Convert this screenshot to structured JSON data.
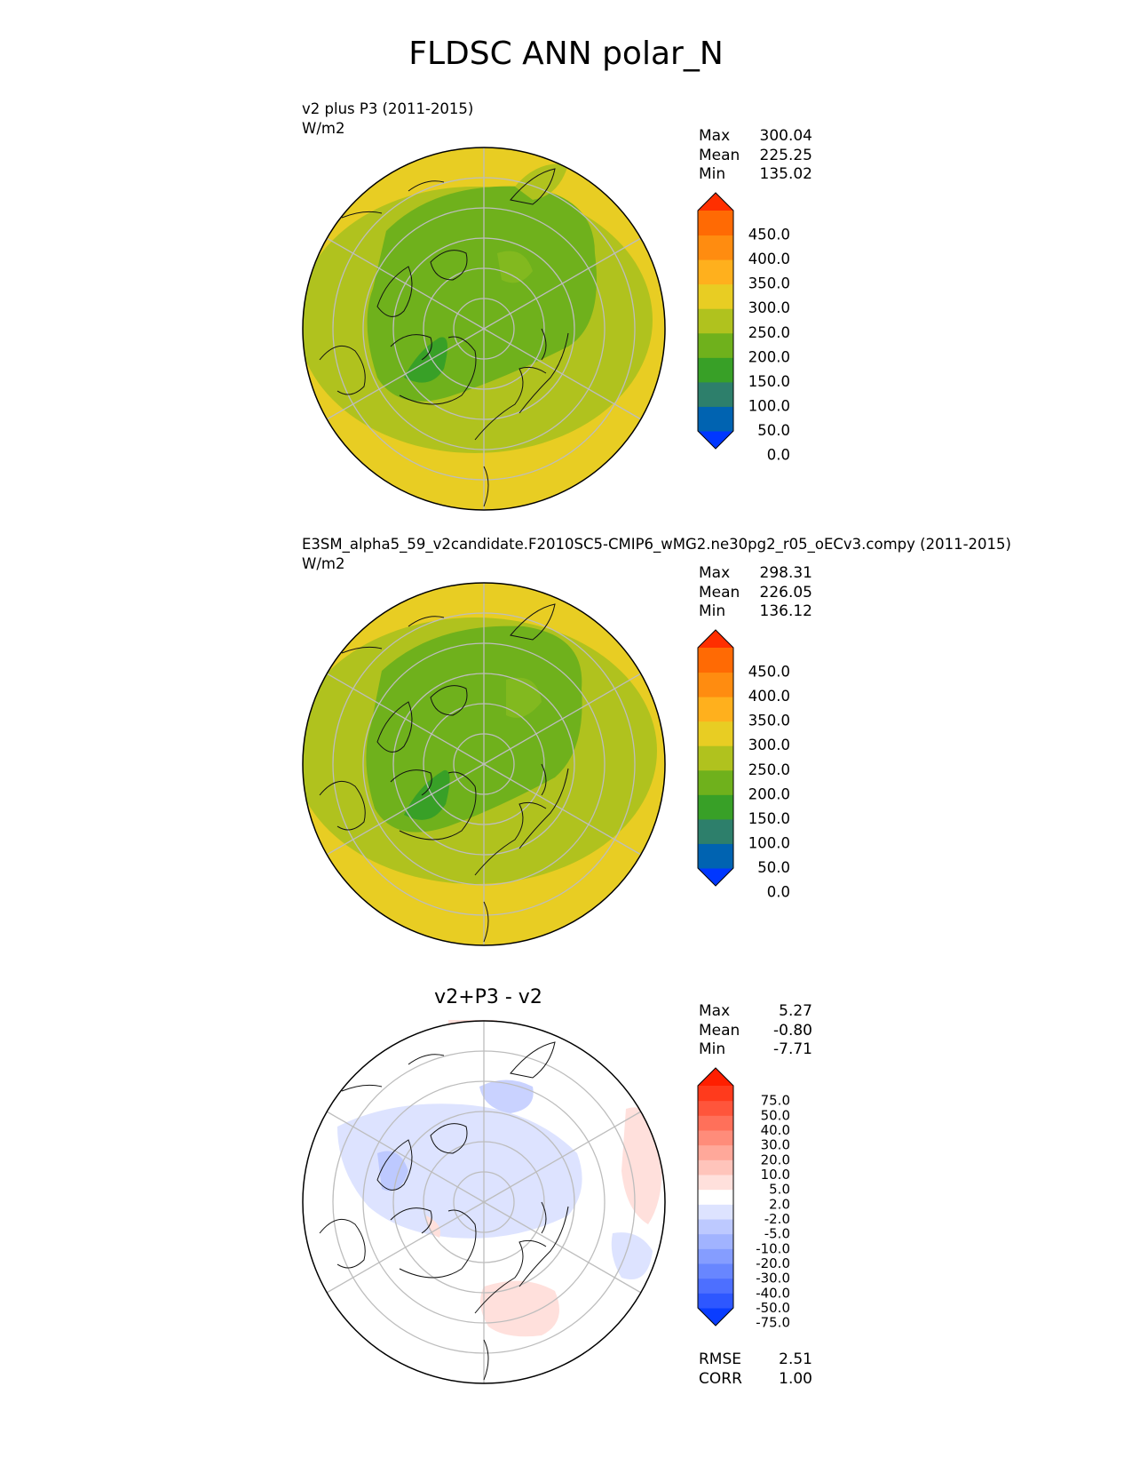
{
  "figure": {
    "suptitle": "FLDSC ANN polar_N"
  },
  "panels": [
    {
      "id": "test",
      "title": "v2 plus P3 (2011-2015)",
      "units": "W/m2",
      "stats": {
        "Max": "300.04",
        "Mean": "225.25",
        "Min": "135.02"
      },
      "colorbar": {
        "labels": [
          "450.0",
          "400.0",
          "350.0",
          "300.0",
          "250.0",
          "200.0",
          "150.0",
          "100.0",
          "50.0",
          "0.0"
        ],
        "colors": [
          "#0037ff",
          "#0063b1",
          "#2d7f6b",
          "#38a027",
          "#6fb11c",
          "#b0c21e",
          "#e8cd23",
          "#ffb01d",
          "#ff8c10",
          "#ff6a04",
          "#ff2f00"
        ]
      }
    },
    {
      "id": "ref",
      "title": "E3SM_alpha5_59_v2candidate.F2010SC5-CMIP6_wMG2.ne30pg2_r05_oECv3.compy (2011-2015)",
      "units": "W/m2",
      "stats": {
        "Max": "298.31",
        "Mean": "226.05",
        "Min": "136.12"
      },
      "colorbar": {
        "labels": [
          "450.0",
          "400.0",
          "350.0",
          "300.0",
          "250.0",
          "200.0",
          "150.0",
          "100.0",
          "50.0",
          "0.0"
        ],
        "colors": [
          "#0037ff",
          "#0063b1",
          "#2d7f6b",
          "#38a027",
          "#6fb11c",
          "#b0c21e",
          "#e8cd23",
          "#ffb01d",
          "#ff8c10",
          "#ff6a04",
          "#ff2f00"
        ]
      }
    },
    {
      "id": "diff",
      "title": "v2+P3 - v2",
      "stats": {
        "Max": "5.27",
        "Mean": "-0.80",
        "Min": "-7.71"
      },
      "metrics": {
        "RMSE": "2.51",
        "CORR": "1.00"
      },
      "colorbar": {
        "labels": [
          "75.0",
          "50.0",
          "40.0",
          "30.0",
          "20.0",
          "10.0",
          "5.0",
          "2.0",
          "-2.0",
          "-5.0",
          "-10.0",
          "-20.0",
          "-30.0",
          "-40.0",
          "-50.0",
          "-75.0"
        ],
        "colors": [
          "#0a3dff",
          "#2e57ff",
          "#4d6fff",
          "#6886ff",
          "#859dff",
          "#a1b3ff",
          "#bdc9ff",
          "#dde3ff",
          "#ffffff",
          "#ffe0dc",
          "#ffc4bb",
          "#ffa89a",
          "#ff8c7a",
          "#ff705a",
          "#ff553b",
          "#ff3a1c",
          "#ff1f00"
        ]
      }
    }
  ],
  "chart_data": {
    "type": "heatmap",
    "title": "FLDSC ANN polar_N",
    "projection": "north polar stereographic",
    "variable": "FLDSC",
    "units": "W/m2",
    "panels": [
      {
        "name": "v2 plus P3 (2011-2015)",
        "max": 300.04,
        "mean": 225.25,
        "min": 135.02,
        "levels": [
          0,
          50,
          100,
          150,
          200,
          250,
          300,
          350,
          400,
          450
        ]
      },
      {
        "name": "E3SM_alpha5_59_v2candidate.F2010SC5-CMIP6_wMG2.ne30pg2_r05_oECv3.compy (2011-2015)",
        "max": 298.31,
        "mean": 226.05,
        "min": 136.12,
        "levels": [
          0,
          50,
          100,
          150,
          200,
          250,
          300,
          350,
          400,
          450
        ]
      },
      {
        "name": "v2+P3 - v2",
        "max": 5.27,
        "mean": -0.8,
        "min": -7.71,
        "rmse": 2.51,
        "corr": 1.0,
        "levels": [
          -75,
          -50,
          -40,
          -30,
          -20,
          -10,
          -5,
          -2,
          2,
          5,
          10,
          20,
          30,
          40,
          50,
          75
        ]
      }
    ]
  }
}
